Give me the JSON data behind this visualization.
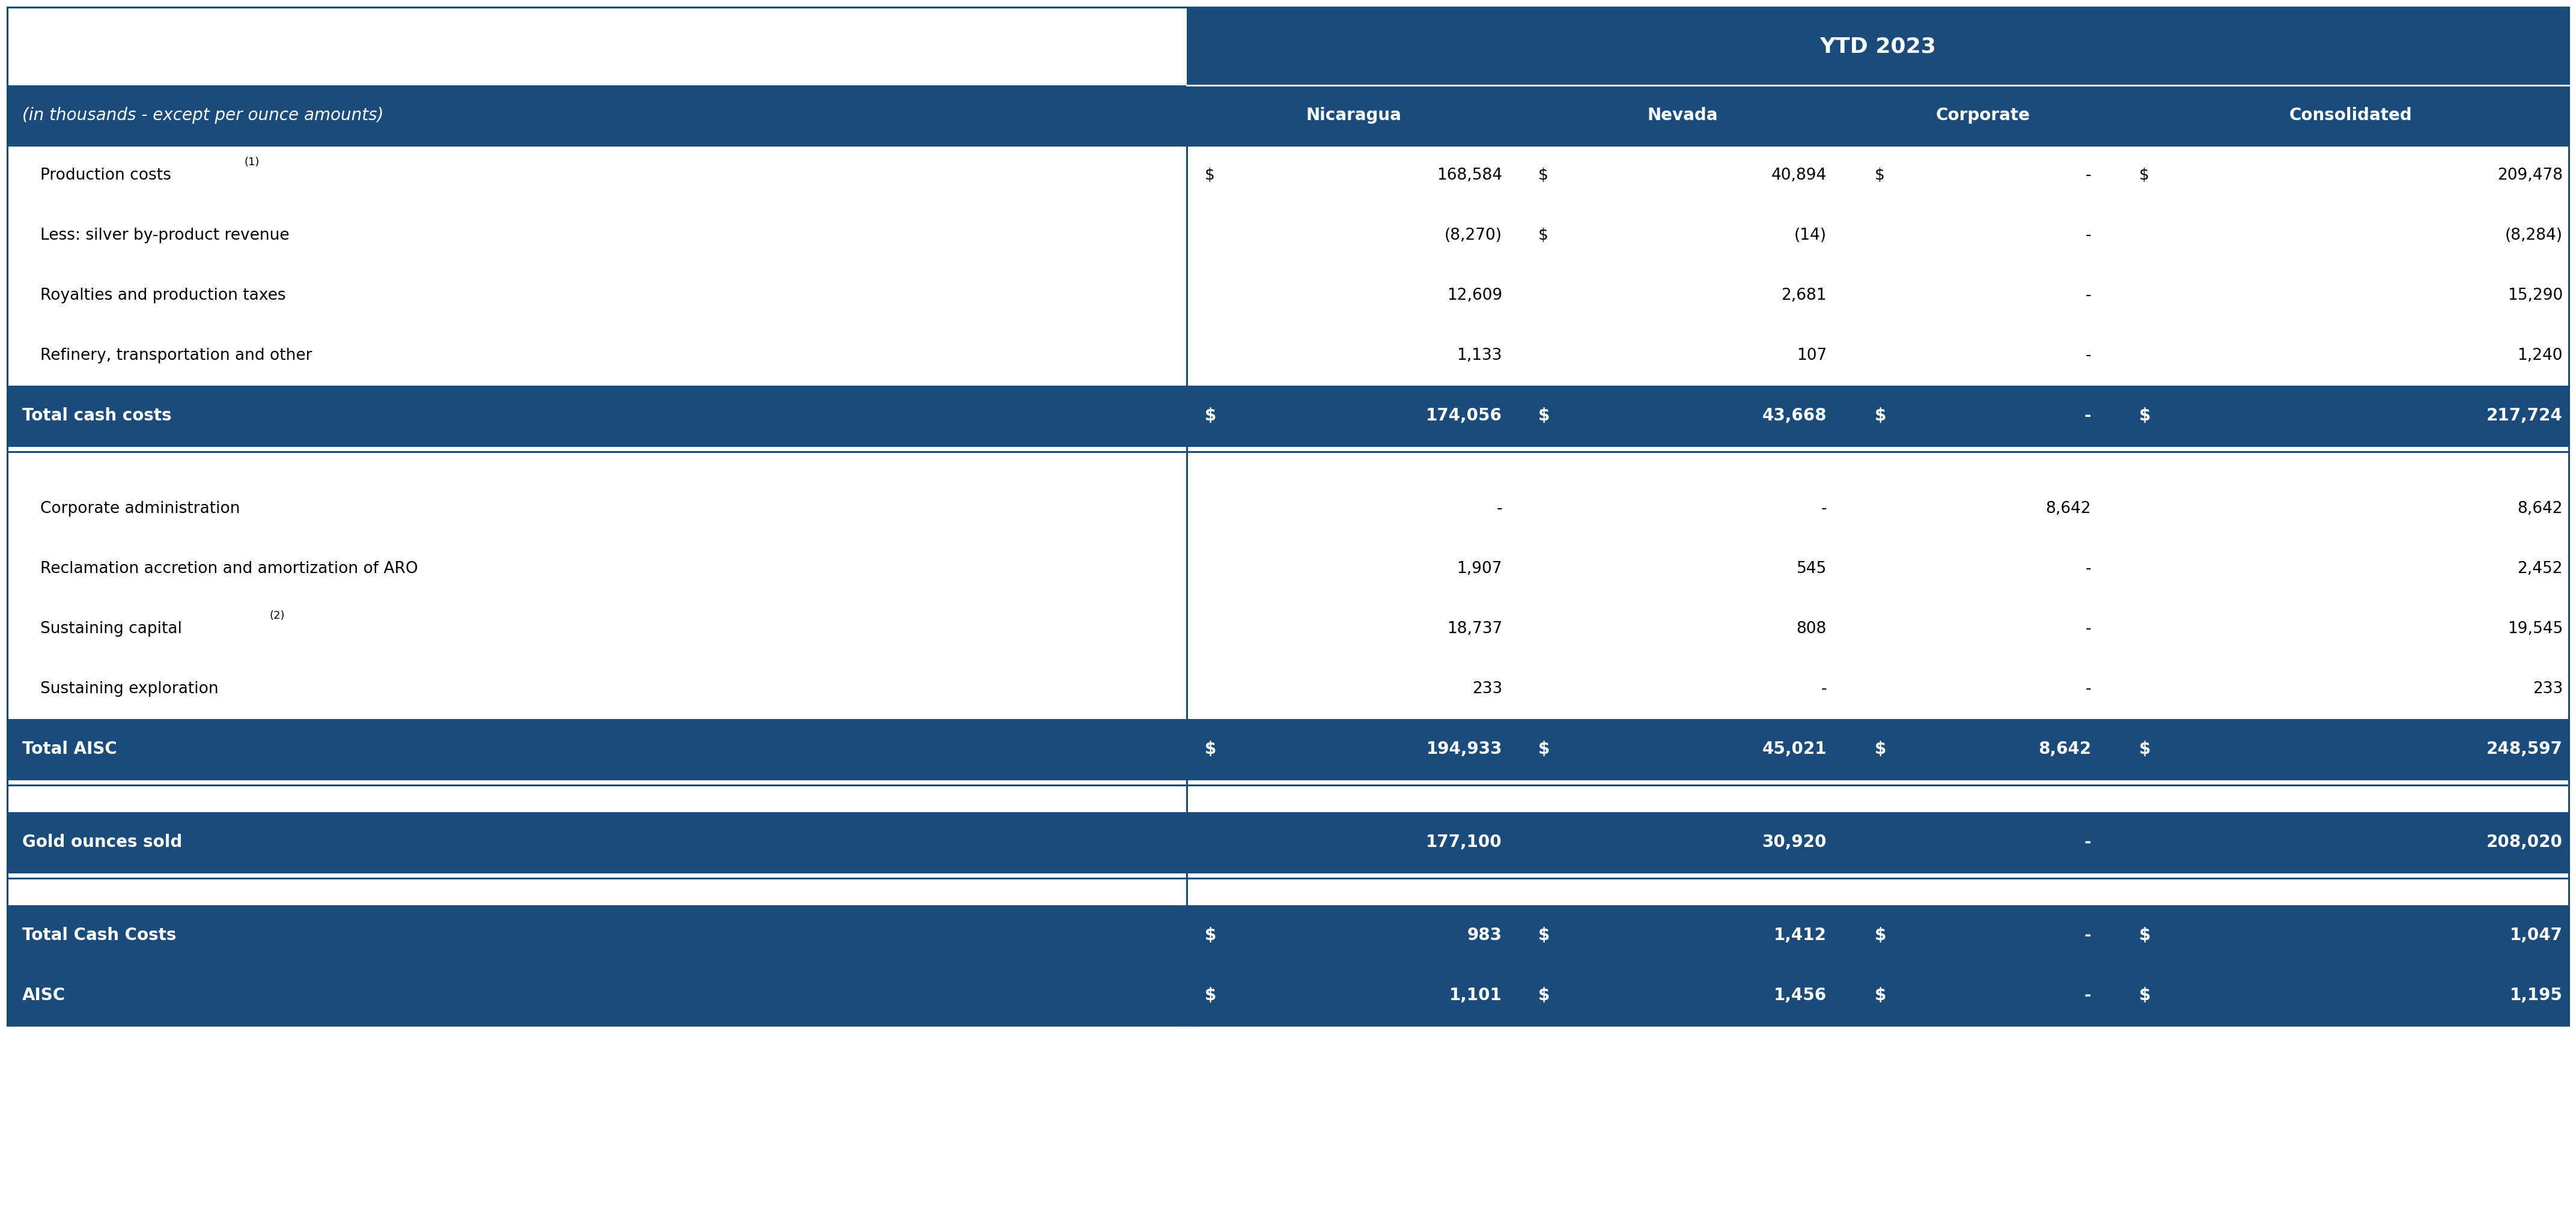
{
  "header_bg": "#1a4b7a",
  "header_fg": "#ffffff",
  "white": "#ffffff",
  "black": "#000000",
  "line_color": "#1a4b7a",
  "ytd_label": "YTD 2023",
  "subtitle": "(in thousands - except per ounce amounts)",
  "col_headers": [
    "Nicaragua",
    "Nevada",
    "Corporate",
    "Consolidated"
  ],
  "rows": [
    {
      "label": "Production costs",
      "sup": "(1)",
      "indent": true,
      "bold": false,
      "nic_dollar": true,
      "nev_dollar": true,
      "corp_dollar": true,
      "cons_dollar": true,
      "nic": "168,584",
      "nev": "40,894",
      "corp": "-",
      "cons": "209,478",
      "type": "normal"
    },
    {
      "label": "Less: silver by-product revenue",
      "sup": "",
      "indent": true,
      "bold": false,
      "nic_dollar": false,
      "nev_dollar": true,
      "corp_dollar": false,
      "cons_dollar": false,
      "nic": "(8,270)",
      "nev": "(14)",
      "corp": "-",
      "cons": "(8,284)",
      "type": "normal"
    },
    {
      "label": "Royalties and production taxes",
      "sup": "",
      "indent": true,
      "bold": false,
      "nic_dollar": false,
      "nev_dollar": false,
      "corp_dollar": false,
      "cons_dollar": false,
      "nic": "12,609",
      "nev": "2,681",
      "corp": "-",
      "cons": "15,290",
      "type": "normal"
    },
    {
      "label": "Refinery, transportation and other",
      "sup": "",
      "indent": true,
      "bold": false,
      "nic_dollar": false,
      "nev_dollar": false,
      "corp_dollar": false,
      "cons_dollar": false,
      "nic": "1,133",
      "nev": "107",
      "corp": "-",
      "cons": "1,240",
      "type": "normal"
    },
    {
      "label": "Total cash costs",
      "sup": "",
      "indent": false,
      "bold": true,
      "nic_dollar": true,
      "nev_dollar": true,
      "corp_dollar": true,
      "cons_dollar": true,
      "nic": "174,056",
      "nev": "43,668",
      "corp": "-",
      "cons": "217,724",
      "type": "bold"
    },
    {
      "type": "gap"
    },
    {
      "label": "Corporate administration",
      "sup": "",
      "indent": true,
      "bold": false,
      "nic_dollar": false,
      "nev_dollar": false,
      "corp_dollar": false,
      "cons_dollar": false,
      "nic": "-",
      "nev": "-",
      "corp": "8,642",
      "cons": "8,642",
      "type": "normal"
    },
    {
      "label": "Reclamation accretion and amortization of ARO",
      "sup": "",
      "indent": true,
      "bold": false,
      "nic_dollar": false,
      "nev_dollar": false,
      "corp_dollar": false,
      "cons_dollar": false,
      "nic": "1,907",
      "nev": "545",
      "corp": "-",
      "cons": "2,452",
      "type": "normal"
    },
    {
      "label": "Sustaining capital",
      "sup": "(2)",
      "indent": true,
      "bold": false,
      "nic_dollar": false,
      "nev_dollar": false,
      "corp_dollar": false,
      "cons_dollar": false,
      "nic": "18,737",
      "nev": "808",
      "corp": "-",
      "cons": "19,545",
      "type": "normal"
    },
    {
      "label": "Sustaining exploration",
      "sup": "",
      "indent": true,
      "bold": false,
      "nic_dollar": false,
      "nev_dollar": false,
      "corp_dollar": false,
      "cons_dollar": false,
      "nic": "233",
      "nev": "-",
      "corp": "-",
      "cons": "233",
      "type": "normal"
    },
    {
      "label": "Total AISC",
      "sup": "",
      "indent": false,
      "bold": true,
      "nic_dollar": true,
      "nev_dollar": true,
      "corp_dollar": true,
      "cons_dollar": true,
      "nic": "194,933",
      "nev": "45,021",
      "corp": "8,642",
      "cons": "248,597",
      "type": "bold"
    },
    {
      "type": "gap"
    },
    {
      "label": "Gold ounces sold",
      "sup": "",
      "indent": false,
      "bold": true,
      "nic_dollar": false,
      "nev_dollar": false,
      "corp_dollar": false,
      "cons_dollar": false,
      "nic": "177,100",
      "nev": "30,920",
      "corp": "-",
      "cons": "208,020",
      "type": "bold"
    },
    {
      "type": "gap"
    },
    {
      "label": "Total Cash Costs",
      "sup": "",
      "indent": false,
      "bold": true,
      "nic_dollar": true,
      "nev_dollar": true,
      "corp_dollar": true,
      "cons_dollar": true,
      "nic": "983",
      "nev": "1,412",
      "corp": "-",
      "cons": "1,047",
      "type": "bold"
    },
    {
      "label": "AISC",
      "sup": "",
      "indent": false,
      "bold": true,
      "nic_dollar": true,
      "nev_dollar": true,
      "corp_dollar": true,
      "cons_dollar": true,
      "nic": "1,101",
      "nev": "1,456",
      "corp": "-",
      "cons": "1,195",
      "type": "bold"
    }
  ]
}
